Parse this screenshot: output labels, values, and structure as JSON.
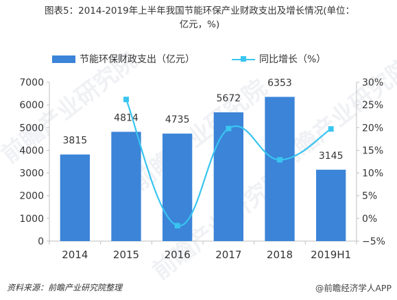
{
  "title_line1": "图表5：2014-2019年上半年我国节能环保产业财政支出及增长情况(单位：",
  "title_line2": "亿元，%)",
  "legend": {
    "bar_label": "节能环保财政支出（亿元）",
    "line_label": "同比增长（%）"
  },
  "source": "资料来源：前瞻产业研究院整理",
  "brand": "@前瞻经济学人APP",
  "watermark": "前瞻产业研究院",
  "colors": {
    "bar": "#3b84d8",
    "line": "#39c5f0",
    "axis": "#bfbfbf"
  },
  "chart_data": {
    "type": "bar",
    "categories": [
      "2014",
      "2015",
      "2016",
      "2017",
      "2018",
      "2019H1"
    ],
    "series": [
      {
        "name": "节能环保财政支出（亿元）",
        "type": "bar",
        "axis": "left",
        "values": [
          3815,
          4814,
          4735,
          5672,
          6353,
          3145
        ],
        "labels": [
          "3815",
          "4814",
          "4735",
          "5672",
          "6353",
          "3145"
        ]
      },
      {
        "name": "同比增长（%）",
        "type": "line",
        "axis": "right",
        "smooth": true,
        "values": [
          null,
          26.2,
          -1.6,
          19.8,
          12.9,
          19.7
        ]
      }
    ],
    "y_left": {
      "min": 0,
      "max": 7000,
      "step": 1000,
      "ticks": [
        "0",
        "1000",
        "2000",
        "3000",
        "4000",
        "5000",
        "6000",
        "7000"
      ]
    },
    "y_right": {
      "min": -5,
      "max": 30,
      "step": 5,
      "ticks": [
        "−5%",
        "0%",
        "5%",
        "10%",
        "15%",
        "20%",
        "25%",
        "30%"
      ]
    },
    "grid": false,
    "legend_position": "top"
  }
}
